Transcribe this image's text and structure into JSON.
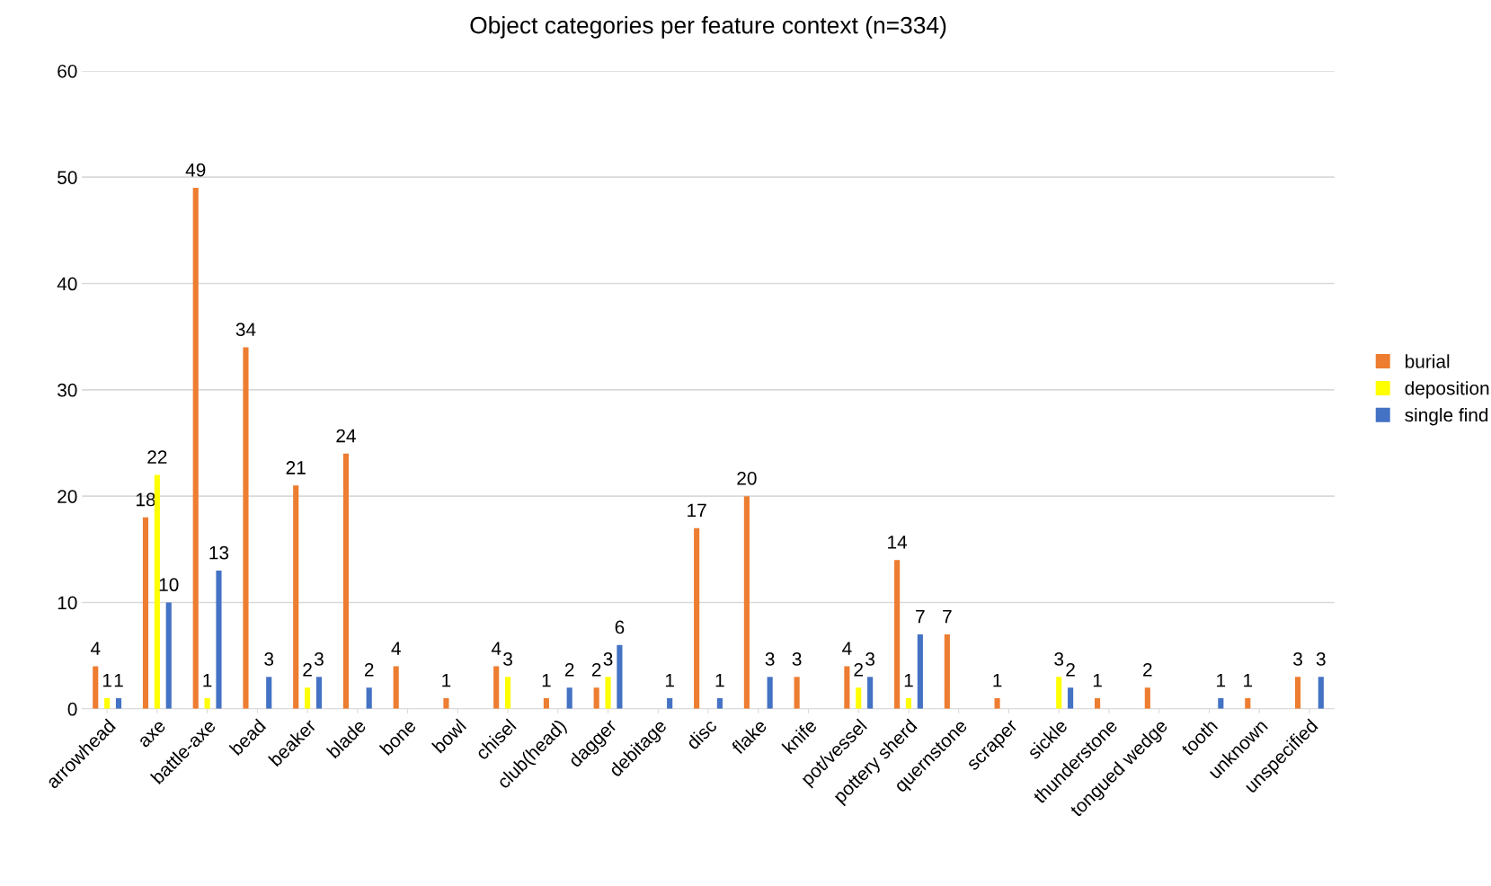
{
  "chart_data": {
    "type": "bar",
    "title": "Object categories per feature context (n=334)",
    "categories": [
      "arrowhead",
      "axe",
      "battle-axe",
      "bead",
      "beaker",
      "blade",
      "bone",
      "bowl",
      "chisel",
      "club(head)",
      "dagger",
      "debitage",
      "disc",
      "flake",
      "knife",
      "pot/vessel",
      "pottery sherd",
      "quernstone",
      "scraper",
      "sickle",
      "thunderstone",
      "tongued wedge",
      "tooth",
      "unknown",
      "unspecified"
    ],
    "series": [
      {
        "name": "burial",
        "color": "#ed7d31",
        "values": [
          4,
          18,
          49,
          34,
          21,
          24,
          4,
          1,
          4,
          1,
          2,
          null,
          17,
          20,
          3,
          4,
          14,
          7,
          1,
          null,
          1,
          2,
          null,
          1,
          3
        ]
      },
      {
        "name": "deposition",
        "color": "#ffff00",
        "values": [
          1,
          22,
          1,
          null,
          2,
          null,
          null,
          null,
          3,
          null,
          3,
          null,
          null,
          null,
          null,
          2,
          1,
          null,
          null,
          3,
          null,
          null,
          null,
          null,
          null
        ]
      },
      {
        "name": "single find",
        "color": "#4472c4",
        "values": [
          1,
          10,
          13,
          3,
          3,
          2,
          null,
          null,
          null,
          2,
          6,
          1,
          1,
          3,
          null,
          3,
          7,
          null,
          null,
          2,
          null,
          null,
          1,
          null,
          3
        ]
      }
    ],
    "ylim": [
      0,
      60
    ],
    "yticks": [
      0,
      10,
      20,
      30,
      40,
      50,
      60
    ],
    "grid": "y",
    "legend": "right",
    "data_labels": true
  }
}
